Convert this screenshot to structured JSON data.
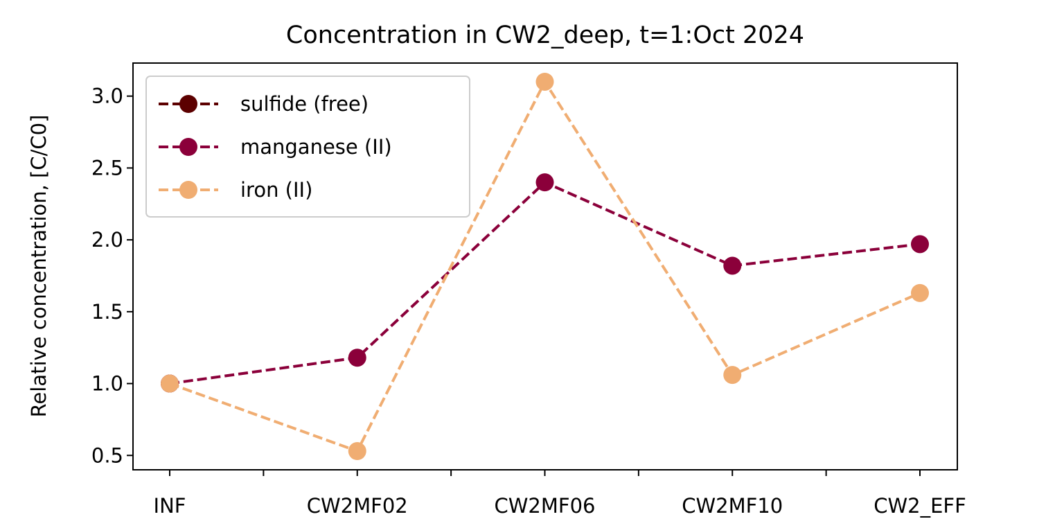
{
  "chart_data": {
    "type": "line",
    "title": "Concentration in CW2_deep, t=1:Oct 2024",
    "xlabel": "",
    "ylabel": "Relative concentration, [C/C0]",
    "categories": [
      "INF",
      "CW2MF02",
      "CW2MF06",
      "CW2MF10",
      "CW2_EFF"
    ],
    "ylim": [
      0.4,
      3.23
    ],
    "yticks": [
      0.5,
      1.0,
      1.5,
      2.0,
      2.5,
      3.0
    ],
    "ytick_labels": [
      "0.5",
      "1.0",
      "1.5",
      "2.0",
      "2.5",
      "3.0"
    ],
    "grid": false,
    "legend_position": "top-left",
    "series": [
      {
        "name": "sulfide (free)",
        "color": "#5c0000",
        "linestyle": "dashed",
        "marker": "circle",
        "values": [
          1.0,
          null,
          null,
          null,
          null
        ]
      },
      {
        "name": "manganese (II)",
        "color": "#8b003a",
        "linestyle": "dashed",
        "marker": "circle",
        "values": [
          1.0,
          1.18,
          2.4,
          1.82,
          1.97
        ]
      },
      {
        "name": "iron (II)",
        "color": "#f0ad72",
        "linestyle": "dashed",
        "marker": "circle",
        "values": [
          1.0,
          0.53,
          3.1,
          1.06,
          1.63
        ]
      }
    ]
  }
}
